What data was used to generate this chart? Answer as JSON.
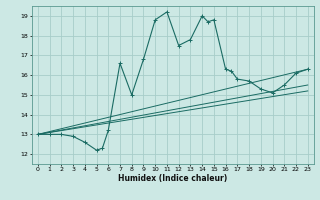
{
  "title": "",
  "xlabel": "Humidex (Indice chaleur)",
  "ylabel": "",
  "background_color": "#cce8e4",
  "grid_color": "#a8cdc9",
  "line_color": "#1a6b63",
  "xlim": [
    -0.5,
    23.5
  ],
  "ylim": [
    11.5,
    19.5
  ],
  "xticks": [
    0,
    1,
    2,
    3,
    4,
    5,
    6,
    7,
    8,
    9,
    10,
    11,
    12,
    13,
    14,
    15,
    16,
    17,
    18,
    19,
    20,
    21,
    22,
    23
  ],
  "yticks": [
    12,
    13,
    14,
    15,
    16,
    17,
    18,
    19
  ],
  "series": [
    [
      0,
      13.0
    ],
    [
      1,
      13.0
    ],
    [
      2,
      13.0
    ],
    [
      3,
      12.9
    ],
    [
      4,
      12.6
    ],
    [
      5,
      12.2
    ],
    [
      5.5,
      12.3
    ],
    [
      6,
      13.2
    ],
    [
      7,
      16.6
    ],
    [
      8,
      15.0
    ],
    [
      9,
      16.8
    ],
    [
      10,
      18.8
    ],
    [
      11,
      19.2
    ],
    [
      12,
      17.5
    ],
    [
      13,
      17.8
    ],
    [
      14,
      19.0
    ],
    [
      14.5,
      18.7
    ],
    [
      15,
      18.8
    ],
    [
      16,
      16.3
    ],
    [
      16.5,
      16.2
    ],
    [
      17,
      15.8
    ],
    [
      18,
      15.7
    ],
    [
      19,
      15.3
    ],
    [
      20,
      15.1
    ],
    [
      21,
      15.5
    ],
    [
      22,
      16.1
    ],
    [
      23,
      16.3
    ]
  ],
  "line2": [
    [
      0,
      13.0
    ],
    [
      23,
      16.3
    ]
  ],
  "line3": [
    [
      0,
      13.0
    ],
    [
      23,
      15.5
    ]
  ],
  "line4": [
    [
      0,
      13.0
    ],
    [
      23,
      15.2
    ]
  ]
}
